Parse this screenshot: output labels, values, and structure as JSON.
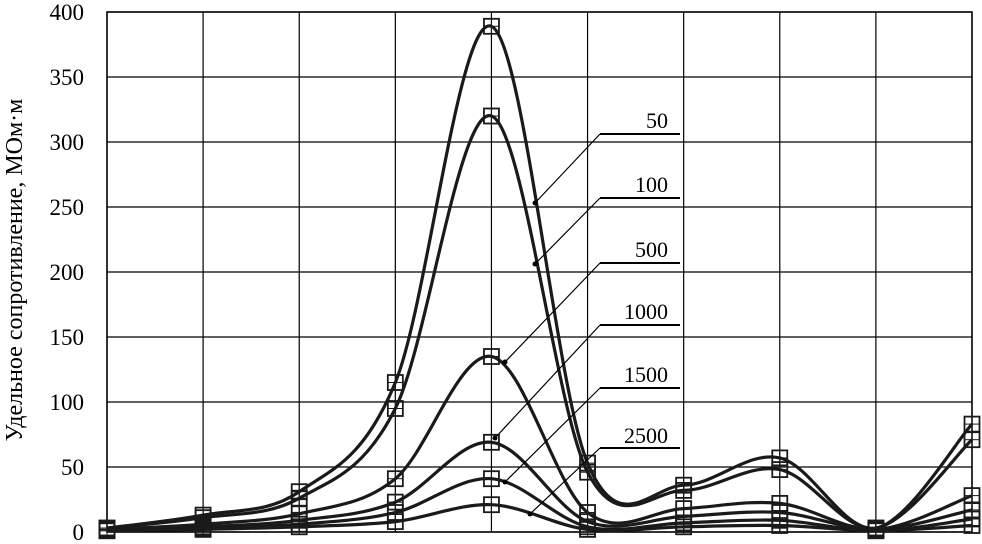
{
  "chart_data": {
    "type": "line",
    "title": "",
    "xlabel": "",
    "ylabel": "Удельное сопротивление, МОм·м",
    "ylim": [
      0,
      400
    ],
    "yticks": [
      "0",
      "50",
      "100",
      "150",
      "200",
      "250",
      "300",
      "350",
      "400"
    ],
    "x": [
      0,
      1,
      2,
      3,
      4,
      5,
      6,
      7,
      8,
      9
    ],
    "grid": true,
    "marker": "square",
    "line_color": "#1a1a1a",
    "series": [
      {
        "name": "50",
        "values": [
          3,
          13,
          31,
          115,
          389,
          53,
          36,
          57,
          3,
          83
        ]
      },
      {
        "name": "100",
        "values": [
          3,
          11,
          26,
          95,
          320,
          46,
          32,
          48,
          3,
          71
        ]
      },
      {
        "name": "500",
        "values": [
          2,
          6,
          14,
          41,
          135,
          15,
          18,
          22,
          2,
          28
        ]
      },
      {
        "name": "1000",
        "values": [
          2,
          4,
          9,
          23,
          69,
          8,
          12,
          15,
          2,
          17
        ]
      },
      {
        "name": "1500",
        "values": [
          1,
          3,
          6,
          15,
          41,
          4,
          7,
          9,
          1,
          10
        ]
      },
      {
        "name": "2500",
        "values": [
          1,
          2,
          4,
          8,
          21,
          2,
          4,
          5,
          1,
          5
        ]
      }
    ]
  }
}
